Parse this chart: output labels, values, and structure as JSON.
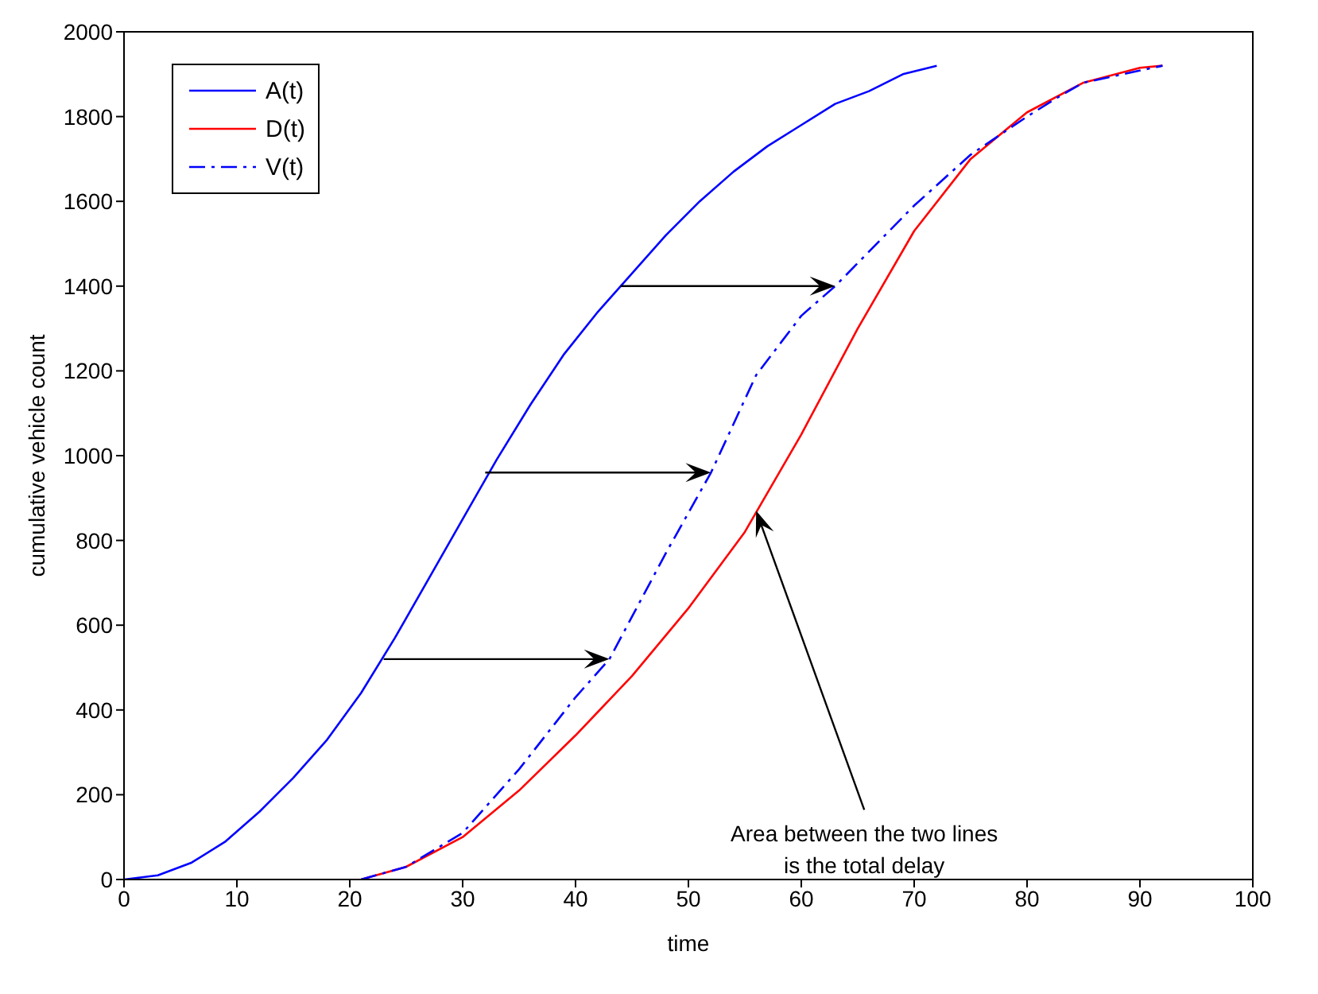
{
  "chart_data": {
    "type": "line",
    "xlabel": "time",
    "ylabel": "cumulative vehicle count",
    "xlim": [
      0,
      100
    ],
    "xticks": [
      0,
      10,
      20,
      30,
      40,
      50,
      60,
      70,
      80,
      90,
      100
    ],
    "ylim": [
      0,
      2000
    ],
    "yticks": [
      0,
      200,
      400,
      600,
      800,
      1000,
      1200,
      1400,
      1600,
      1800,
      2000
    ],
    "grid": false,
    "legend": "top left",
    "marker": "none",
    "annotations": [
      {
        "text": "Area between the two lines\nis the total delay",
        "x": 56,
        "y": 870
      }
    ],
    "series": [
      {
        "name": "A(t)",
        "color": "#0000ff",
        "line_style": "solid",
        "x": [
          0,
          3,
          6,
          9,
          12,
          15,
          18,
          21,
          24,
          27,
          30,
          33,
          36,
          39,
          42,
          45,
          48,
          51,
          54,
          57,
          60,
          63,
          66,
          69,
          72
        ],
        "values": [
          0,
          10,
          40,
          90,
          160,
          240,
          330,
          440,
          570,
          710,
          850,
          990,
          1120,
          1240,
          1340,
          1430,
          1520,
          1600,
          1670,
          1730,
          1780,
          1830,
          1860,
          1900,
          1920
        ]
      },
      {
        "name": "D(t)",
        "color": "#ff0000",
        "line_style": "solid",
        "x": [
          21,
          25,
          30,
          35,
          40,
          45,
          50,
          55,
          60,
          65,
          70,
          75,
          80,
          85,
          90,
          92
        ],
        "values": [
          0,
          30,
          100,
          210,
          340,
          480,
          640,
          820,
          1050,
          1300,
          1530,
          1700,
          1810,
          1880,
          1915,
          1920
        ]
      },
      {
        "name": "V(t)",
        "color": "#0000ff",
        "line_style": "dashed",
        "x": [
          21,
          25,
          30,
          35,
          40,
          43,
          48,
          52,
          56,
          60,
          63,
          70,
          75,
          80,
          83,
          85,
          92
        ],
        "values": [
          0,
          30,
          110,
          260,
          430,
          520,
          770,
          960,
          1190,
          1330,
          1400,
          1590,
          1710,
          1800,
          1850,
          1880,
          1920
        ]
      }
    ]
  }
}
